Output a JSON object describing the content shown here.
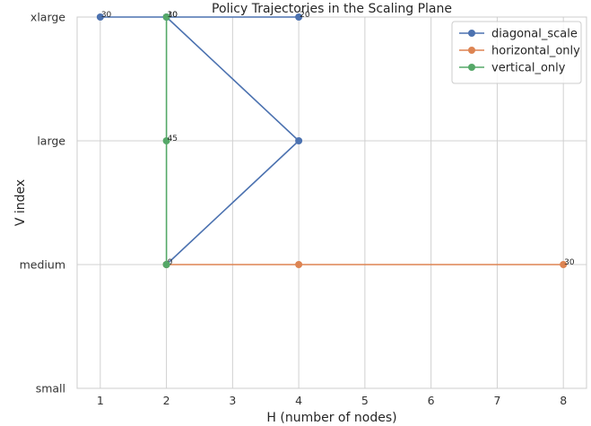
{
  "chart_data": {
    "type": "line",
    "title": "Policy Trajectories in the Scaling Plane",
    "xlabel": "H (number of nodes)",
    "ylabel": "V index",
    "xlim": [
      0.65,
      8.35
    ],
    "ylim": [
      0,
      3
    ],
    "x_ticks": [
      1,
      2,
      3,
      4,
      5,
      6,
      7,
      8
    ],
    "y_ticks": [
      {
        "value": 0,
        "label": "small"
      },
      {
        "value": 1,
        "label": "medium"
      },
      {
        "value": 2,
        "label": "large"
      },
      {
        "value": 3,
        "label": "xlarge"
      }
    ],
    "grid": true,
    "legend_position": "top-right",
    "series": [
      {
        "name": "diagonal_scale",
        "color": "#4c72b0",
        "points": [
          {
            "x": 2,
            "y": 1,
            "label": ""
          },
          {
            "x": 4,
            "y": 2,
            "label": ""
          },
          {
            "x": 2,
            "y": 3,
            "label": "10"
          },
          {
            "x": 1,
            "y": 3,
            "label": "30"
          },
          {
            "x": 4,
            "y": 3,
            "label": "20"
          }
        ],
        "path": [
          [
            2,
            1
          ],
          [
            4,
            2
          ],
          [
            2,
            3
          ],
          [
            1,
            3
          ],
          [
            4,
            3
          ]
        ]
      },
      {
        "name": "horizontal_only",
        "color": "#dd8452",
        "points": [
          {
            "x": 2,
            "y": 1,
            "label": "0"
          },
          {
            "x": 4,
            "y": 1,
            "label": ""
          },
          {
            "x": 8,
            "y": 1,
            "label": "30"
          }
        ],
        "path": [
          [
            2,
            1
          ],
          [
            4,
            1
          ],
          [
            8,
            1
          ]
        ]
      },
      {
        "name": "vertical_only",
        "color": "#55a868",
        "points": [
          {
            "x": 2,
            "y": 1,
            "label": ""
          },
          {
            "x": 2,
            "y": 2,
            "label": "45"
          },
          {
            "x": 2,
            "y": 3,
            "label": "30"
          }
        ],
        "path": [
          [
            2,
            1
          ],
          [
            2,
            2
          ],
          [
            2,
            3
          ]
        ]
      }
    ]
  }
}
